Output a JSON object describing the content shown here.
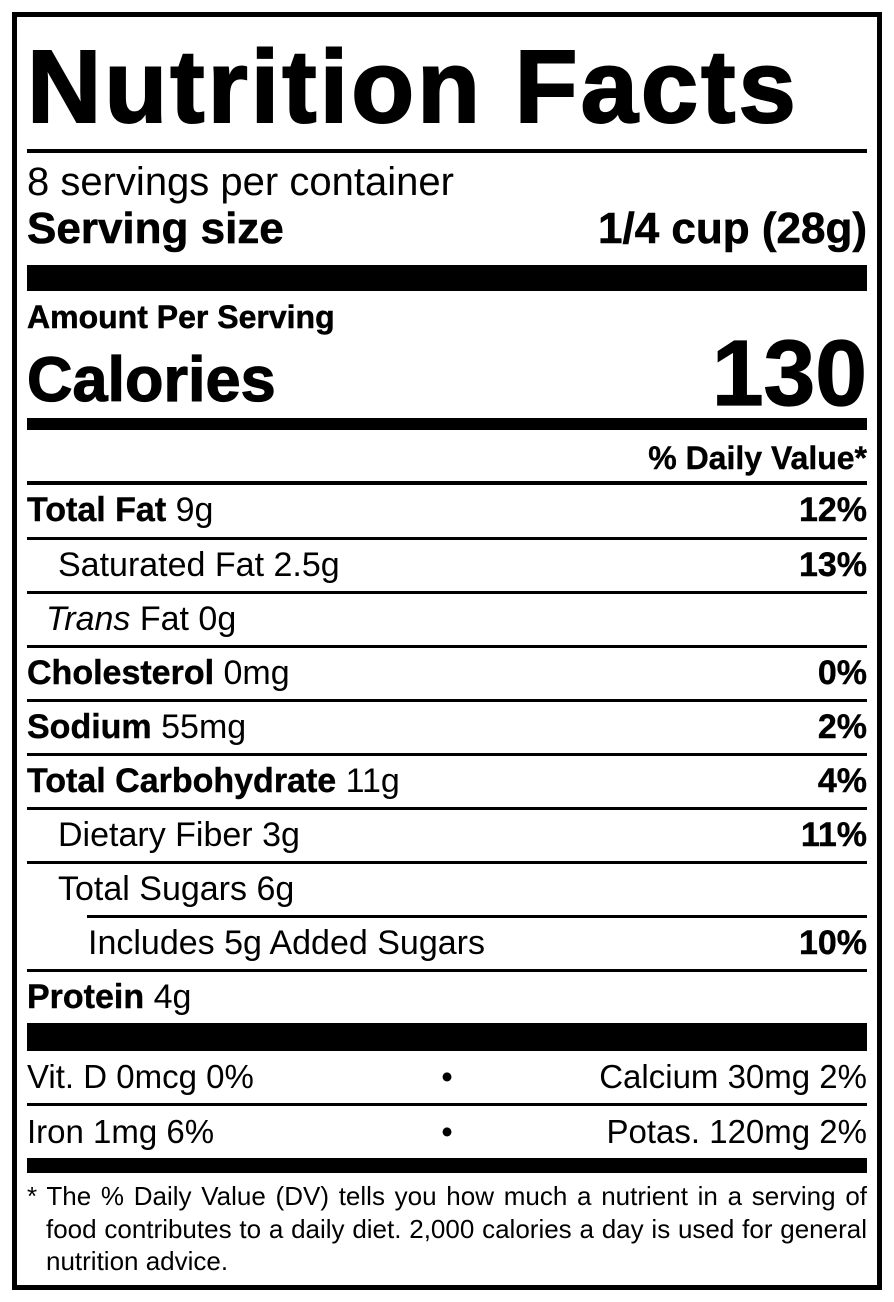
{
  "label": {
    "title": "Nutrition Facts",
    "servings_per_container": "8 servings per container",
    "serving_size": {
      "label": "Serving size",
      "value": "1/4 cup (28g)"
    },
    "amount_per_serving": "Amount Per Serving",
    "calories": {
      "label": "Calories",
      "value": "130"
    },
    "daily_value_header": "% Daily Value*",
    "nutrients": [
      {
        "name": "Total Fat",
        "amount": "9g",
        "dv": "12%"
      },
      {
        "name": "Saturated Fat",
        "amount": "2.5g",
        "dv": "13%"
      },
      {
        "name_italic": "Trans",
        "name_rest": "Fat",
        "amount": "0g",
        "dv": ""
      },
      {
        "name": "Cholesterol",
        "amount": "0mg",
        "dv": "0%"
      },
      {
        "name": "Sodium",
        "amount": "55mg",
        "dv": "2%"
      },
      {
        "name": "Total Carbohydrate",
        "amount": "11g",
        "dv": "4%"
      },
      {
        "name": "Dietary Fiber",
        "amount": "3g",
        "dv": "11%"
      },
      {
        "name": "Total Sugars",
        "amount": "6g",
        "dv": ""
      },
      {
        "name": "Includes 5g Added Sugars",
        "amount": "",
        "dv": "10%"
      },
      {
        "name": "Protein",
        "amount": "4g",
        "dv": ""
      }
    ],
    "vitamins": {
      "bullet": "•",
      "rows": [
        {
          "left": "Vit. D 0mcg 0%",
          "right": "Calcium 30mg 2%"
        },
        {
          "left": "Iron 1mg 6%",
          "right": "Potas. 120mg 2%"
        }
      ]
    },
    "footnote": {
      "marker": "*",
      "text": "The % Daily Value (DV) tells you how much a nutrient in a serving of food contributes to a daily diet. 2,000 calories a day is used for general nutrition advice."
    }
  },
  "colors": {
    "ink": "#000000",
    "paper": "#ffffff"
  }
}
